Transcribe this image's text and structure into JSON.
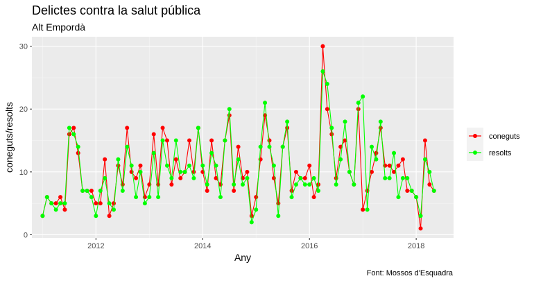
{
  "chart_data": {
    "type": "line",
    "title": "Delictes contra la salut pública",
    "subtitle": "Alt Empordà",
    "xlabel": "Any",
    "ylabel": "coneguts/resolts",
    "caption": "Font: Mossos d'Esquadra",
    "xlim": [
      2010.8,
      2018.7
    ],
    "ylim": [
      -0.5,
      31.5
    ],
    "x_ticks": [
      2012,
      2014,
      2016,
      2018
    ],
    "x_tick_labels": [
      "2012",
      "2014",
      "2016",
      "2018"
    ],
    "y_ticks": [
      0,
      10,
      20,
      30
    ],
    "y_tick_labels": [
      "0",
      "10",
      "20",
      "30"
    ],
    "grid": true,
    "legend_position": "right",
    "x_start": 2011.0,
    "x_step_months": 1,
    "series": [
      {
        "name": "coneguts",
        "color": "#ff0000",
        "values": [
          3,
          6,
          5,
          5,
          6,
          4,
          16,
          17,
          13,
          7,
          7,
          7,
          5,
          5,
          12,
          3,
          5,
          11,
          8,
          17,
          10,
          9,
          11,
          6,
          8,
          16,
          8,
          17,
          15,
          8,
          12,
          9,
          10,
          15,
          10,
          17,
          10,
          7,
          15,
          9,
          8,
          15,
          19,
          7,
          14,
          9,
          10,
          3,
          6,
          12,
          19,
          15,
          9,
          5,
          14,
          17,
          7,
          10,
          9,
          9,
          11,
          6,
          8,
          30,
          20,
          16,
          9,
          14,
          15,
          10,
          8,
          20,
          4,
          7,
          10,
          13,
          17,
          11,
          11,
          10,
          11,
          12,
          7,
          7,
          6,
          1,
          15,
          8,
          7
        ]
      },
      {
        "name": "resolts",
        "color": "#00ff00",
        "values": [
          3,
          6,
          5,
          4,
          5,
          5,
          17,
          16,
          14,
          7,
          7,
          6,
          3,
          7,
          9,
          5,
          4,
          12,
          7,
          14,
          11,
          6,
          10,
          5,
          6,
          13,
          6,
          15,
          11,
          9,
          15,
          10,
          10,
          11,
          9,
          17,
          11,
          8,
          13,
          11,
          6,
          15,
          20,
          8,
          12,
          8,
          9,
          2,
          4,
          14,
          21,
          14,
          11,
          3,
          14,
          18,
          6,
          8,
          9,
          8,
          8,
          9,
          7,
          26,
          24,
          17,
          8,
          12,
          18,
          10,
          8,
          21,
          22,
          4,
          14,
          12,
          18,
          9,
          9,
          13,
          6,
          9,
          9,
          7,
          6,
          3,
          12,
          10,
          7
        ]
      }
    ]
  }
}
